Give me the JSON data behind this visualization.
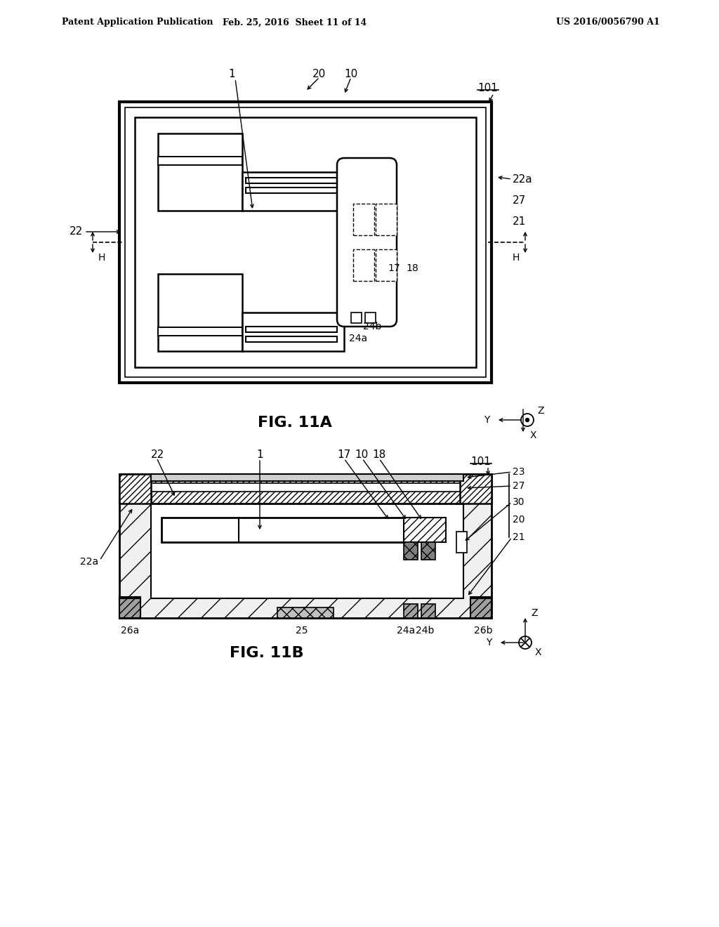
{
  "header_left": "Patent Application Publication",
  "header_mid": "Feb. 25, 2016  Sheet 11 of 14",
  "header_right": "US 2016/0056790 A1",
  "fig_a_label": "FIG. 11A",
  "fig_b_label": "FIG. 11B",
  "bg_color": "#ffffff",
  "line_color": "#000000"
}
